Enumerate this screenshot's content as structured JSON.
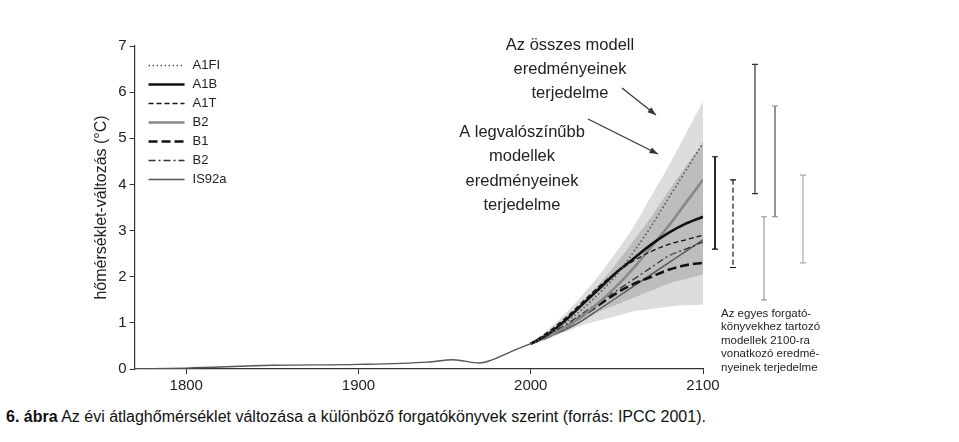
{
  "chart_data": {
    "type": "line",
    "title": "6. ábra Az évi átlaghőmérséklet változása a különböző forgatókönyvek szerint (forrás: IPCC 2001).",
    "y_label": "hőmérséklet-változás (°C)",
    "x": [
      1770,
      1800,
      1850,
      1900,
      1940,
      1955,
      1970,
      1990,
      2000,
      2010,
      2020,
      2030,
      2040,
      2050,
      2060,
      2070,
      2080,
      2090,
      2100
    ],
    "series": [
      {
        "name": "A1FI",
        "color": "#555555",
        "line_style": "dotted",
        "values": [
          null,
          null,
          null,
          null,
          null,
          null,
          null,
          null,
          0.55,
          0.75,
          1.0,
          1.3,
          1.65,
          2.05,
          2.55,
          3.1,
          3.7,
          4.3,
          4.9
        ]
      },
      {
        "name": "A1B",
        "color": "#111111",
        "line_style": "thick",
        "values": [
          null,
          null,
          null,
          null,
          null,
          null,
          null,
          null,
          0.55,
          0.75,
          1.05,
          1.4,
          1.75,
          2.1,
          2.4,
          2.7,
          2.95,
          3.15,
          3.3
        ]
      },
      {
        "name": "A1T",
        "color": "#111111",
        "line_style": "dashed",
        "values": [
          null,
          null,
          null,
          null,
          null,
          null,
          null,
          null,
          0.55,
          0.8,
          1.1,
          1.45,
          1.8,
          2.1,
          2.35,
          2.55,
          2.7,
          2.8,
          2.9
        ]
      },
      {
        "name": "B2",
        "color": "#888888",
        "line_style": "thick",
        "values": [
          null,
          null,
          null,
          null,
          null,
          null,
          null,
          null,
          0.55,
          0.7,
          0.9,
          1.15,
          1.45,
          1.8,
          2.2,
          2.65,
          3.1,
          3.6,
          4.1
        ]
      },
      {
        "name": "B1",
        "color": "#111111",
        "line_style": "thick_dashed",
        "values": [
          null,
          null,
          null,
          null,
          null,
          null,
          null,
          null,
          0.55,
          0.7,
          0.9,
          1.15,
          1.4,
          1.65,
          1.85,
          2.0,
          2.15,
          2.25,
          2.3
        ]
      },
      {
        "name": "B2",
        "color": "#333333",
        "line_style": "dashdot",
        "values": [
          null,
          null,
          null,
          null,
          null,
          null,
          null,
          null,
          0.55,
          0.75,
          0.95,
          1.2,
          1.45,
          1.7,
          1.95,
          2.2,
          2.45,
          2.6,
          2.75
        ]
      },
      {
        "name": "IS92a",
        "color": "#555555",
        "line_style": "solid",
        "values": [
          0.0,
          0.02,
          0.08,
          0.1,
          0.15,
          0.2,
          0.13,
          0.4,
          0.55,
          0.7,
          0.85,
          1.05,
          1.3,
          1.55,
          1.8,
          2.05,
          2.3,
          2.55,
          2.8
        ]
      }
    ],
    "bands": [
      {
        "color": "#dddddd",
        "lower": [
          null,
          null,
          null,
          null,
          null,
          null,
          null,
          null,
          0.55,
          0.65,
          0.8,
          0.95,
          1.05,
          1.15,
          1.25,
          1.3,
          1.35,
          1.38,
          1.4
        ],
        "upper": [
          null,
          null,
          null,
          null,
          null,
          null,
          null,
          null,
          0.55,
          0.85,
          1.2,
          1.6,
          2.05,
          2.55,
          3.1,
          3.75,
          4.4,
          5.1,
          5.8
        ]
      },
      {
        "color": "#bdbdbd",
        "lower": [
          null,
          null,
          null,
          null,
          null,
          null,
          null,
          null,
          0.55,
          0.68,
          0.85,
          1.05,
          1.25,
          1.4,
          1.55,
          1.7,
          1.85,
          1.95,
          2.05
        ],
        "upper": [
          null,
          null,
          null,
          null,
          null,
          null,
          null,
          null,
          0.55,
          0.8,
          1.1,
          1.45,
          1.85,
          2.3,
          2.8,
          3.3,
          3.85,
          4.4,
          4.9
        ]
      }
    ],
    "annotations": [
      {
        "text": [
          "Az összes modell",
          "eredményeinek",
          "terjedelme"
        ]
      },
      {
        "text": [
          "A legvalószínűbb",
          "modellek",
          "eredményeinek",
          "terjedelme"
        ]
      }
    ],
    "ranges_2100": {
      "text": [
        "Az egyes forgató-",
        "könyvekhez tartozó",
        "modellek 2100-ra",
        "vonatkozó eredmé-",
        "nyeinek terjedelme"
      ],
      "items": [
        {
          "low": 2.6,
          "high": 4.6,
          "color": "#111111",
          "line_style": "thick"
        },
        {
          "low": 2.2,
          "high": 4.1,
          "color": "#111111",
          "line_style": "dashed"
        },
        {
          "low": 3.8,
          "high": 6.6,
          "color": "#333333",
          "line_style": "solid"
        },
        {
          "low": 1.5,
          "high": 3.3,
          "color": "#999999",
          "line_style": "solid"
        },
        {
          "low": 3.3,
          "high": 5.7,
          "color": "#888888",
          "line_style": "thick"
        },
        {
          "low": 2.3,
          "high": 4.2,
          "color": "#aaaaaa",
          "line_style": "solid"
        }
      ]
    },
    "xlim": [
      1770,
      2100
    ],
    "ylim": [
      0,
      7
    ],
    "xticks": [
      1800,
      1900,
      2000,
      2100
    ],
    "yticks": [
      0,
      1,
      2,
      3,
      4,
      5,
      6,
      7
    ],
    "grid": false,
    "legend": "upper left"
  }
}
